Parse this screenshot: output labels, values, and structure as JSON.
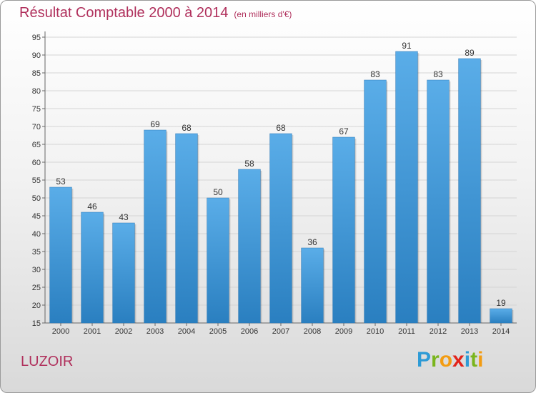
{
  "header": {
    "title": "Résultat Comptable 2000 à 2014",
    "unit": "(en milliers d'€)"
  },
  "footer": {
    "city": "LUZOIR",
    "logo_letters": [
      "P",
      "r",
      "o",
      "x",
      "i",
      "t",
      "i"
    ],
    "logo_colors": [
      "#2e9bd6",
      "#7ab51d",
      "#f39c12",
      "#e2231a",
      "#2e9bd6",
      "#7ab51d",
      "#f39c12"
    ]
  },
  "chart_data": {
    "type": "bar",
    "title": "Résultat Comptable 2000 à 2014",
    "ylabel": "(en milliers d'€)",
    "categories": [
      "2000",
      "2001",
      "2002",
      "2003",
      "2004",
      "2005",
      "2006",
      "2007",
      "2008",
      "2009",
      "2010",
      "2011",
      "2012",
      "2013",
      "2014"
    ],
    "values": [
      53,
      46,
      43,
      69,
      68,
      50,
      58,
      68,
      36,
      67,
      83,
      91,
      83,
      89,
      19
    ],
    "ylim": [
      15,
      95
    ],
    "yticks": [
      15,
      20,
      25,
      30,
      35,
      40,
      45,
      50,
      55,
      60,
      65,
      70,
      75,
      80,
      85,
      90,
      95
    ],
    "grid": true,
    "bar_color_top": "#5aade8",
    "bar_color_bottom": "#2a7fc0"
  }
}
